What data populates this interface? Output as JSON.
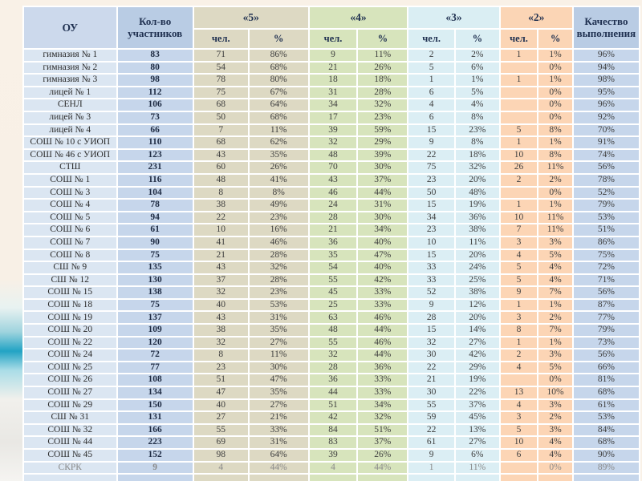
{
  "slide": {
    "background_color": "#f9f1e7",
    "left_wave_colors": [
      "#9fd4de",
      "#22a3c4",
      "#aadde7"
    ]
  },
  "colors": {
    "grade5_column": "#ddd9c3",
    "grade4_column": "#d7e4bc",
    "grade3_column": "#dbeef4",
    "grade2_column": "#fcd5b5",
    "blue_column": "#c6d6eb",
    "gridline": "#ffffff"
  },
  "table": {
    "headers": {
      "school": "ОУ",
      "participants": "Кол-во участников",
      "grade5": "«5»",
      "grade4": "«4»",
      "grade3": "«3»",
      "grade2": "«2»",
      "quality": "Качество выполнения",
      "people": "чел.",
      "percent": "%"
    },
    "rows": [
      {
        "school": "гимназия № 1",
        "participants": "83",
        "g5": [
          "71",
          "86%"
        ],
        "g4": [
          "9",
          "11%"
        ],
        "g3": [
          "2",
          "2%"
        ],
        "g2": [
          "1",
          "1%"
        ],
        "quality": "96%"
      },
      {
        "school": "гимназия № 2",
        "participants": "80",
        "g5": [
          "54",
          "68%"
        ],
        "g4": [
          "21",
          "26%"
        ],
        "g3": [
          "5",
          "6%"
        ],
        "g2": [
          "",
          "0%"
        ],
        "quality": "94%"
      },
      {
        "school": "гимназия № 3",
        "participants": "98",
        "g5": [
          "78",
          "80%"
        ],
        "g4": [
          "18",
          "18%"
        ],
        "g3": [
          "1",
          "1%"
        ],
        "g2": [
          "1",
          "1%"
        ],
        "quality": "98%"
      },
      {
        "school": "лицей № 1",
        "participants": "112",
        "g5": [
          "75",
          "67%"
        ],
        "g4": [
          "31",
          "28%"
        ],
        "g3": [
          "6",
          "5%"
        ],
        "g2": [
          "",
          "0%"
        ],
        "quality": "95%"
      },
      {
        "school": "СЕНЛ",
        "participants": "106",
        "g5": [
          "68",
          "64%"
        ],
        "g4": [
          "34",
          "32%"
        ],
        "g3": [
          "4",
          "4%"
        ],
        "g2": [
          "",
          "0%"
        ],
        "quality": "96%"
      },
      {
        "school": "лицей № 3",
        "participants": "73",
        "g5": [
          "50",
          "68%"
        ],
        "g4": [
          "17",
          "23%"
        ],
        "g3": [
          "6",
          "8%"
        ],
        "g2": [
          "",
          "0%"
        ],
        "quality": "92%"
      },
      {
        "school": "лицей № 4",
        "participants": "66",
        "g5": [
          "7",
          "11%"
        ],
        "g4": [
          "39",
          "59%"
        ],
        "g3": [
          "15",
          "23%"
        ],
        "g2": [
          "5",
          "8%"
        ],
        "quality": "70%"
      },
      {
        "school": "СОШ № 10 с УИОП",
        "participants": "110",
        "g5": [
          "68",
          "62%"
        ],
        "g4": [
          "32",
          "29%"
        ],
        "g3": [
          "9",
          "8%"
        ],
        "g2": [
          "1",
          "1%"
        ],
        "quality": "91%"
      },
      {
        "school": "СОШ № 46 с УИОП",
        "participants": "123",
        "g5": [
          "43",
          "35%"
        ],
        "g4": [
          "48",
          "39%"
        ],
        "g3": [
          "22",
          "18%"
        ],
        "g2": [
          "10",
          "8%"
        ],
        "quality": "74%"
      },
      {
        "school": "СТШ",
        "participants": "231",
        "g5": [
          "60",
          "26%"
        ],
        "g4": [
          "70",
          "30%"
        ],
        "g3": [
          "75",
          "32%"
        ],
        "g2": [
          "26",
          "11%"
        ],
        "quality": "56%"
      },
      {
        "school": "СОШ № 1",
        "participants": "116",
        "g5": [
          "48",
          "41%"
        ],
        "g4": [
          "43",
          "37%"
        ],
        "g3": [
          "23",
          "20%"
        ],
        "g2": [
          "2",
          "2%"
        ],
        "quality": "78%"
      },
      {
        "school": "СОШ № 3",
        "participants": "104",
        "g5": [
          "8",
          "8%"
        ],
        "g4": [
          "46",
          "44%"
        ],
        "g3": [
          "50",
          "48%"
        ],
        "g2": [
          "",
          "0%"
        ],
        "quality": "52%"
      },
      {
        "school": "СОШ № 4",
        "participants": "78",
        "g5": [
          "38",
          "49%"
        ],
        "g4": [
          "24",
          "31%"
        ],
        "g3": [
          "15",
          "19%"
        ],
        "g2": [
          "1",
          "1%"
        ],
        "quality": "79%"
      },
      {
        "school": "СОШ № 5",
        "participants": "94",
        "g5": [
          "22",
          "23%"
        ],
        "g4": [
          "28",
          "30%"
        ],
        "g3": [
          "34",
          "36%"
        ],
        "g2": [
          "10",
          "11%"
        ],
        "quality": "53%"
      },
      {
        "school": "СОШ № 6",
        "participants": "61",
        "g5": [
          "10",
          "16%"
        ],
        "g4": [
          "21",
          "34%"
        ],
        "g3": [
          "23",
          "38%"
        ],
        "g2": [
          "7",
          "11%"
        ],
        "quality": "51%"
      },
      {
        "school": "СОШ № 7",
        "participants": "90",
        "g5": [
          "41",
          "46%"
        ],
        "g4": [
          "36",
          "40%"
        ],
        "g3": [
          "10",
          "11%"
        ],
        "g2": [
          "3",
          "3%"
        ],
        "quality": "86%"
      },
      {
        "school": "СОШ № 8",
        "participants": "75",
        "g5": [
          "21",
          "28%"
        ],
        "g4": [
          "35",
          "47%"
        ],
        "g3": [
          "15",
          "20%"
        ],
        "g2": [
          "4",
          "5%"
        ],
        "quality": "75%"
      },
      {
        "school": "СШ № 9",
        "participants": "135",
        "g5": [
          "43",
          "32%"
        ],
        "g4": [
          "54",
          "40%"
        ],
        "g3": [
          "33",
          "24%"
        ],
        "g2": [
          "5",
          "4%"
        ],
        "quality": "72%"
      },
      {
        "school": "СШ № 12",
        "participants": "130",
        "g5": [
          "37",
          "28%"
        ],
        "g4": [
          "55",
          "42%"
        ],
        "g3": [
          "33",
          "25%"
        ],
        "g2": [
          "5",
          "4%"
        ],
        "quality": "71%"
      },
      {
        "school": "СОШ № 15",
        "participants": "138",
        "g5": [
          "32",
          "23%"
        ],
        "g4": [
          "45",
          "33%"
        ],
        "g3": [
          "52",
          "38%"
        ],
        "g2": [
          "9",
          "7%"
        ],
        "quality": "56%"
      },
      {
        "school": "СОШ № 18",
        "participants": "75",
        "g5": [
          "40",
          "53%"
        ],
        "g4": [
          "25",
          "33%"
        ],
        "g3": [
          "9",
          "12%"
        ],
        "g2": [
          "1",
          "1%"
        ],
        "quality": "87%"
      },
      {
        "school": "СОШ № 19",
        "participants": "137",
        "g5": [
          "43",
          "31%"
        ],
        "g4": [
          "63",
          "46%"
        ],
        "g3": [
          "28",
          "20%"
        ],
        "g2": [
          "3",
          "2%"
        ],
        "quality": "77%"
      },
      {
        "school": "СОШ № 20",
        "participants": "109",
        "g5": [
          "38",
          "35%"
        ],
        "g4": [
          "48",
          "44%"
        ],
        "g3": [
          "15",
          "14%"
        ],
        "g2": [
          "8",
          "7%"
        ],
        "quality": "79%"
      },
      {
        "school": "СОШ № 22",
        "participants": "120",
        "g5": [
          "32",
          "27%"
        ],
        "g4": [
          "55",
          "46%"
        ],
        "g3": [
          "32",
          "27%"
        ],
        "g2": [
          "1",
          "1%"
        ],
        "quality": "73%"
      },
      {
        "school": "СОШ № 24",
        "participants": "72",
        "g5": [
          "8",
          "11%"
        ],
        "g4": [
          "32",
          "44%"
        ],
        "g3": [
          "30",
          "42%"
        ],
        "g2": [
          "2",
          "3%"
        ],
        "quality": "56%"
      },
      {
        "school": "СОШ № 25",
        "participants": "77",
        "g5": [
          "23",
          "30%"
        ],
        "g4": [
          "28",
          "36%"
        ],
        "g3": [
          "22",
          "29%"
        ],
        "g2": [
          "4",
          "5%"
        ],
        "quality": "66%"
      },
      {
        "school": "СОШ № 26",
        "participants": "108",
        "g5": [
          "51",
          "47%"
        ],
        "g4": [
          "36",
          "33%"
        ],
        "g3": [
          "21",
          "19%"
        ],
        "g2": [
          "",
          "0%"
        ],
        "quality": "81%"
      },
      {
        "school": "СОШ № 27",
        "participants": "134",
        "g5": [
          "47",
          "35%"
        ],
        "g4": [
          "44",
          "33%"
        ],
        "g3": [
          "30",
          "22%"
        ],
        "g2": [
          "13",
          "10%"
        ],
        "quality": "68%"
      },
      {
        "school": "СОШ № 29",
        "participants": "150",
        "g5": [
          "40",
          "27%"
        ],
        "g4": [
          "51",
          "34%"
        ],
        "g3": [
          "55",
          "37%"
        ],
        "g2": [
          "4",
          "3%"
        ],
        "quality": "61%"
      },
      {
        "school": "СШ № 31",
        "participants": "131",
        "g5": [
          "27",
          "21%"
        ],
        "g4": [
          "42",
          "32%"
        ],
        "g3": [
          "59",
          "45%"
        ],
        "g2": [
          "3",
          "2%"
        ],
        "quality": "53%"
      },
      {
        "school": "СОШ № 32",
        "participants": "166",
        "g5": [
          "55",
          "33%"
        ],
        "g4": [
          "84",
          "51%"
        ],
        "g3": [
          "22",
          "13%"
        ],
        "g2": [
          "5",
          "3%"
        ],
        "quality": "84%"
      },
      {
        "school": "СОШ № 44",
        "participants": "223",
        "g5": [
          "69",
          "31%"
        ],
        "g4": [
          "83",
          "37%"
        ],
        "g3": [
          "61",
          "27%"
        ],
        "g2": [
          "10",
          "4%"
        ],
        "quality": "68%"
      },
      {
        "school": "СОШ № 45",
        "participants": "152",
        "g5": [
          "98",
          "64%"
        ],
        "g4": [
          "39",
          "26%"
        ],
        "g3": [
          "9",
          "6%"
        ],
        "g2": [
          "6",
          "4%"
        ],
        "quality": "90%"
      },
      {
        "school": "СКРК",
        "participants": "9",
        "g5": [
          "4",
          "44%"
        ],
        "g4": [
          "4",
          "44%"
        ],
        "g3": [
          "1",
          "11%"
        ],
        "g2": [
          "",
          "0%"
        ],
        "quality": "89%",
        "muted": true
      }
    ],
    "clipped_row": {
      "visible": true
    }
  }
}
